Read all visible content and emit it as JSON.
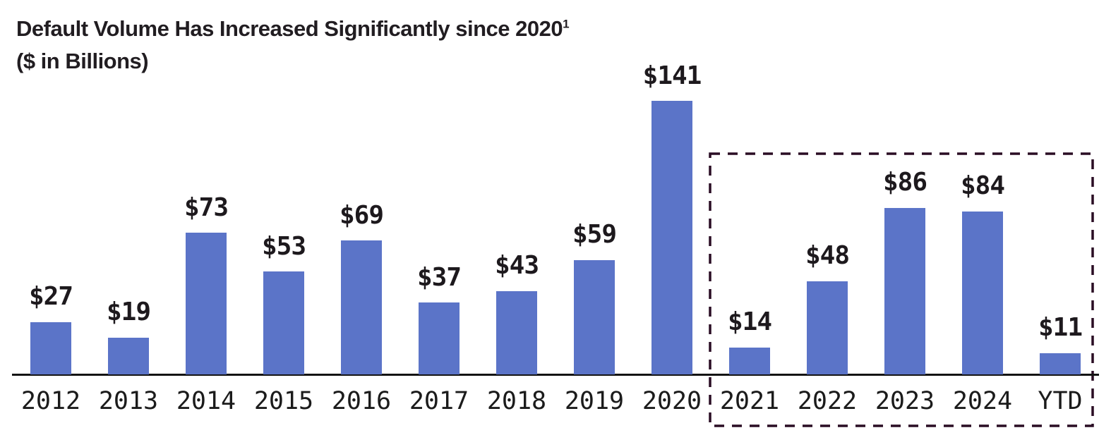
{
  "header": {
    "title": "Default Volume Has Increased Significantly since 2020",
    "title_superscript": "1",
    "subtitle": "($ in Billions)"
  },
  "chart_data": {
    "type": "bar",
    "title": "Default Volume Has Increased Significantly since 2020 ($ in Billions)",
    "categories": [
      "2012",
      "2013",
      "2014",
      "2015",
      "2016",
      "2017",
      "2018",
      "2019",
      "2020",
      "2021",
      "2022",
      "2023",
      "2024",
      "YTD"
    ],
    "values": [
      27,
      19,
      73,
      53,
      69,
      37,
      43,
      59,
      141,
      14,
      48,
      86,
      84,
      11
    ],
    "value_labels": [
      "$27",
      "$19",
      "$73",
      "$53",
      "$69",
      "$37",
      "$43",
      "$59",
      "$141",
      "$14",
      "$48",
      "$86",
      "$84",
      "$11"
    ],
    "xlabel": "",
    "ylabel": "",
    "ylim": [
      0,
      150
    ],
    "grid": false,
    "legend": false,
    "bar_color": "#5b74c8",
    "axis_color": "#141414",
    "text_color": "#1d191d",
    "highlight": {
      "style": "dashed-box",
      "categories": [
        "2021",
        "2022",
        "2023",
        "2024",
        "YTD"
      ],
      "color": "#2a0d24"
    }
  }
}
